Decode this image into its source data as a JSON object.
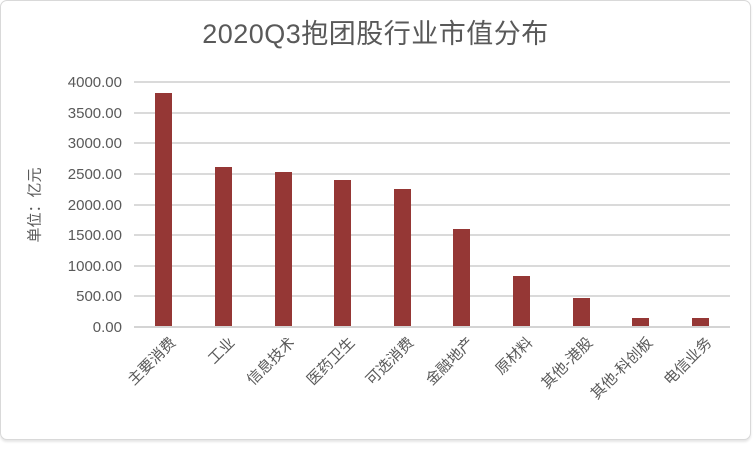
{
  "chart_data": {
    "type": "bar",
    "title": "2020Q3抱团股行业市值分布",
    "ylabel": "单位：亿元",
    "xlabel": "",
    "categories": [
      "主要消费",
      "工业",
      "信息技术",
      "医药卫生",
      "可选消费",
      "金融地产",
      "原材料",
      "其他-港股",
      "其他-科创板",
      "电信业务"
    ],
    "values": [
      3820,
      2610,
      2530,
      2400,
      2250,
      1600,
      840,
      470,
      150,
      150
    ],
    "ylim": [
      0,
      4000
    ],
    "ytick_step": 500,
    "ytick_labels": [
      "4000.00",
      "3500.00",
      "3000.00",
      "2500.00",
      "2000.00",
      "1500.00",
      "1000.00",
      "500.00",
      "0.00"
    ],
    "grid": true,
    "legend_position": "none",
    "colors": {
      "bar": "#953735",
      "text": "#595959",
      "gridline": "#dadada",
      "axis_line": "#d4d4d4",
      "card_border": "#d9d9d9"
    }
  }
}
